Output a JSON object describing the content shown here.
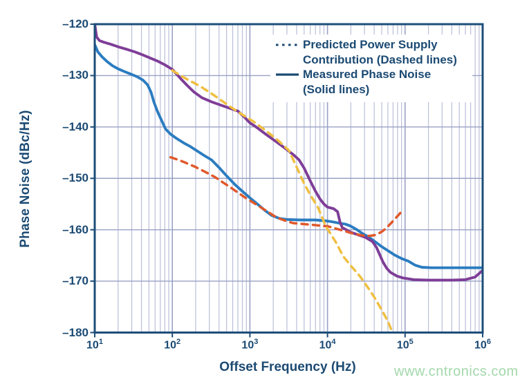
{
  "watermark": "www.cntronics.com",
  "colors": {
    "frame_navy": "#1d4d78",
    "text_navy": "#1b4a73",
    "grid_minor": "#b9bed8",
    "grid_major": "#99a1c4",
    "measured_blue": "#2b7cc0",
    "measured_purple": "#7e3d97",
    "predicted_orange": "#e0592b",
    "predicted_yellow": "#efbf41",
    "watermark_green": "#a3d8ab"
  },
  "legend": {
    "items": [
      {
        "style": "dashed",
        "lines": [
          "Predicted Power Supply",
          "Contribution (Dashed lines)"
        ]
      },
      {
        "style": "solid",
        "lines": [
          "Measured Phase Noise",
          "(Solid lines)"
        ]
      }
    ]
  },
  "chart_data": {
    "type": "line",
    "x_scale": "log",
    "xlabel": "Offset Frequency (Hz)",
    "ylabel": "Phase Noise (dBc/Hz)",
    "xlim": [
      10,
      1000000
    ],
    "ylim": [
      -180,
      -120
    ],
    "x_tick_base": "10",
    "x_tick_exponents": [
      1,
      2,
      3,
      4,
      5,
      6
    ],
    "y_ticks": [
      -120,
      -130,
      -140,
      -150,
      -160,
      -170,
      -180
    ],
    "y_tick_labels": [
      "–120",
      "–130",
      "–140",
      "–150",
      "–160",
      "–170",
      "–180"
    ],
    "grid": {
      "vertical_minor": true,
      "vertical_major": true,
      "horizontal_major": true,
      "horizontal_minor": false
    },
    "legend_position": "top-right",
    "series": [
      {
        "name": "measured-phase-noise-blue",
        "group": "Measured Phase Noise (Solid lines)",
        "style": "solid",
        "color": "#2b7cc0",
        "points": [
          [
            10,
            -124.0
          ],
          [
            11,
            -125.4
          ],
          [
            12.5,
            -126.4
          ],
          [
            14.5,
            -127.3
          ],
          [
            17,
            -128.1
          ],
          [
            20,
            -128.7
          ],
          [
            24,
            -129.2
          ],
          [
            29,
            -129.7
          ],
          [
            35,
            -130.2
          ],
          [
            42,
            -130.9
          ],
          [
            48,
            -131.8
          ],
          [
            53,
            -133.2
          ],
          [
            58,
            -135.2
          ],
          [
            64,
            -136.9
          ],
          [
            72,
            -138.6
          ],
          [
            82,
            -140.4
          ],
          [
            95,
            -141.4
          ],
          [
            115,
            -142.3
          ],
          [
            140,
            -143.1
          ],
          [
            170,
            -143.8
          ],
          [
            210,
            -144.7
          ],
          [
            260,
            -145.6
          ],
          [
            320,
            -146.4
          ],
          [
            400,
            -147.9
          ],
          [
            500,
            -149.5
          ],
          [
            640,
            -151.2
          ],
          [
            800,
            -152.5
          ],
          [
            1000,
            -153.8
          ],
          [
            1250,
            -155.0
          ],
          [
            1550,
            -156.2
          ],
          [
            1900,
            -157.2
          ],
          [
            2400,
            -157.8
          ],
          [
            3000,
            -158.0
          ],
          [
            4500,
            -158.1
          ],
          [
            7000,
            -158.1
          ],
          [
            10000,
            -158.3
          ],
          [
            12000,
            -158.5
          ],
          [
            14000,
            -158.7
          ],
          [
            17000,
            -158.9
          ],
          [
            20000,
            -159.3
          ],
          [
            24000,
            -160.0
          ],
          [
            28000,
            -160.7
          ],
          [
            33000,
            -161.3
          ],
          [
            40000,
            -162.2
          ],
          [
            48000,
            -163.1
          ],
          [
            59000,
            -164.0
          ],
          [
            73000,
            -164.9
          ],
          [
            90000,
            -165.6
          ],
          [
            110000,
            -166.1
          ],
          [
            135000,
            -166.9
          ],
          [
            165000,
            -167.3
          ],
          [
            220000,
            -167.4
          ],
          [
            400000,
            -167.4
          ],
          [
            700000,
            -167.4
          ],
          [
            1000000,
            -167.4
          ]
        ]
      },
      {
        "name": "measured-phase-noise-purple",
        "group": "Measured Phase Noise (Solid lines)",
        "style": "solid",
        "color": "#7e3d97",
        "points": [
          [
            10,
            -120.0
          ],
          [
            10.6,
            -122.5
          ],
          [
            11.5,
            -123.2
          ],
          [
            13,
            -123.5
          ],
          [
            16,
            -123.9
          ],
          [
            20,
            -124.4
          ],
          [
            26,
            -124.9
          ],
          [
            33,
            -125.4
          ],
          [
            42,
            -126.0
          ],
          [
            52,
            -126.6
          ],
          [
            65,
            -127.2
          ],
          [
            80,
            -127.9
          ],
          [
            100,
            -128.8
          ],
          [
            115,
            -129.8
          ],
          [
            130,
            -130.7
          ],
          [
            155,
            -131.9
          ],
          [
            190,
            -133.2
          ],
          [
            240,
            -134.3
          ],
          [
            320,
            -135.1
          ],
          [
            430,
            -135.8
          ],
          [
            560,
            -136.4
          ],
          [
            700,
            -136.9
          ],
          [
            850,
            -138.1
          ],
          [
            1000,
            -139.2
          ],
          [
            1200,
            -140.0
          ],
          [
            1600,
            -141.4
          ],
          [
            2200,
            -142.9
          ],
          [
            3000,
            -144.4
          ],
          [
            3700,
            -145.5
          ],
          [
            4300,
            -146.4
          ],
          [
            5000,
            -148.0
          ],
          [
            6000,
            -150.5
          ],
          [
            7000,
            -152.5
          ],
          [
            8000,
            -154.0
          ],
          [
            9000,
            -155.0
          ],
          [
            10000,
            -155.6
          ],
          [
            12000,
            -155.9
          ],
          [
            13500,
            -156.5
          ],
          [
            14500,
            -158.5
          ],
          [
            15500,
            -159.6
          ],
          [
            17000,
            -159.9
          ],
          [
            20000,
            -160.5
          ],
          [
            25000,
            -161.0
          ],
          [
            31000,
            -161.5
          ],
          [
            38000,
            -162.3
          ],
          [
            43000,
            -163.5
          ],
          [
            47000,
            -164.8
          ],
          [
            52000,
            -166.3
          ],
          [
            58000,
            -167.5
          ],
          [
            65000,
            -168.3
          ],
          [
            78000,
            -169.0
          ],
          [
            95000,
            -169.4
          ],
          [
            130000,
            -169.7
          ],
          [
            200000,
            -169.8
          ],
          [
            400000,
            -169.8
          ],
          [
            600000,
            -169.7
          ],
          [
            800000,
            -169.2
          ],
          [
            1000000,
            -167.9
          ]
        ]
      },
      {
        "name": "predicted-power-supply-orange",
        "group": "Predicted Power Supply Contribution (Dashed lines)",
        "style": "dashed",
        "color": "#e0592b",
        "points": [
          [
            95,
            -145.9
          ],
          [
            120,
            -146.4
          ],
          [
            150,
            -147.0
          ],
          [
            200,
            -147.8
          ],
          [
            270,
            -148.8
          ],
          [
            350,
            -149.7
          ],
          [
            450,
            -150.8
          ],
          [
            580,
            -151.9
          ],
          [
            720,
            -152.9
          ],
          [
            900,
            -153.9
          ],
          [
            1100,
            -154.7
          ],
          [
            1400,
            -155.7
          ],
          [
            1700,
            -156.5
          ],
          [
            2200,
            -157.6
          ],
          [
            2800,
            -158.2
          ],
          [
            3600,
            -158.7
          ],
          [
            5000,
            -158.9
          ],
          [
            7000,
            -159.1
          ],
          [
            10000,
            -159.3
          ],
          [
            13000,
            -159.8
          ],
          [
            17000,
            -160.3
          ],
          [
            22000,
            -160.8
          ],
          [
            28000,
            -161.1
          ],
          [
            35000,
            -161.2
          ],
          [
            42000,
            -161.0
          ],
          [
            50000,
            -160.4
          ],
          [
            58000,
            -159.6
          ],
          [
            66000,
            -158.7
          ],
          [
            75000,
            -157.8
          ],
          [
            85000,
            -156.9
          ],
          [
            93000,
            -156.2
          ]
        ]
      },
      {
        "name": "predicted-power-supply-yellow",
        "group": "Predicted Power Supply Contribution (Dashed lines)",
        "style": "dashed",
        "color": "#efbf41",
        "points": [
          [
            100,
            -129.0
          ],
          [
            150,
            -130.6
          ],
          [
            230,
            -132.1
          ],
          [
            350,
            -133.9
          ],
          [
            550,
            -136.0
          ],
          [
            800,
            -137.6
          ],
          [
            1100,
            -138.9
          ],
          [
            1600,
            -140.7
          ],
          [
            2300,
            -142.6
          ],
          [
            3200,
            -144.6
          ],
          [
            4200,
            -148.5
          ],
          [
            5000,
            -151.0
          ],
          [
            6000,
            -153.2
          ],
          [
            7500,
            -155.6
          ],
          [
            9500,
            -159.3
          ],
          [
            12800,
            -162.4
          ],
          [
            16000,
            -165.2
          ],
          [
            20000,
            -167.0
          ],
          [
            26000,
            -169.0
          ],
          [
            33000,
            -171.2
          ],
          [
            40000,
            -173.1
          ],
          [
            50000,
            -175.6
          ],
          [
            60000,
            -177.8
          ],
          [
            71000,
            -180.5
          ]
        ]
      }
    ]
  }
}
